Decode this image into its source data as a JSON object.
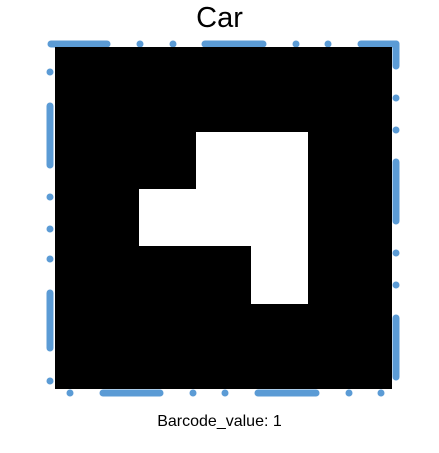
{
  "title": "Car",
  "caption": "Barcode_value: 1",
  "colors": {
    "border_dots": "#5b9bd5",
    "marker_background": "#000000",
    "marker_shape": "#ffffff"
  }
}
